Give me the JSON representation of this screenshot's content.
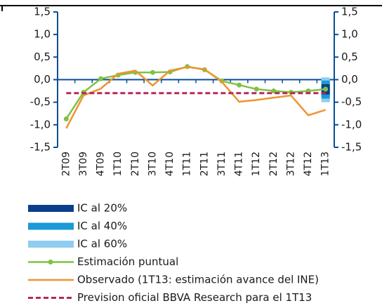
{
  "chart_data": {
    "type": "line",
    "categories": [
      "2T09",
      "3T09",
      "4T09",
      "1T10",
      "2T10",
      "3T10",
      "4T10",
      "1T11",
      "2T11",
      "3T11",
      "4T11",
      "1T12",
      "2T12",
      "3T12",
      "4T12",
      "1T13"
    ],
    "ylim": [
      -1.5,
      1.5
    ],
    "yticks": [
      {
        "value": 1.5,
        "label": "1,5"
      },
      {
        "value": 1.0,
        "label": "1,0"
      },
      {
        "value": 0.5,
        "label": "0,5"
      },
      {
        "value": 0,
        "label": "0,0"
      },
      {
        "value": -0.5,
        "label": "-0,5"
      },
      {
        "value": -1.0,
        "label": "-1,0"
      },
      {
        "value": -1.5,
        "label": "-1,5"
      }
    ],
    "y2lim": [
      -1.5,
      1.5
    ],
    "y2ticks": [
      {
        "value": 1.5,
        "label": "1,5"
      },
      {
        "value": 1.0,
        "label": "1,0"
      },
      {
        "value": 0.5,
        "label": "0,5"
      },
      {
        "value": 0,
        "label": "0,0"
      },
      {
        "value": -0.5,
        "label": "-0,5"
      },
      {
        "value": -1.0,
        "label": "-1,0"
      },
      {
        "value": -1.5,
        "label": "-1,5"
      }
    ],
    "ranges": [
      {
        "name": "IC al 20%",
        "color": "#0a3f8c",
        "low": [
          null,
          null,
          null,
          null,
          null,
          null,
          null,
          null,
          null,
          null,
          null,
          null,
          null,
          null,
          null,
          -0.33
        ],
        "high": [
          null,
          null,
          null,
          null,
          null,
          null,
          null,
          null,
          null,
          null,
          null,
          null,
          null,
          null,
          null,
          -0.1
        ]
      },
      {
        "name": "IC al 40%",
        "color": "#1a9ad6",
        "low": [
          null,
          null,
          null,
          null,
          null,
          null,
          null,
          null,
          null,
          null,
          null,
          null,
          null,
          null,
          null,
          -0.42
        ],
        "high": [
          null,
          null,
          null,
          null,
          null,
          null,
          null,
          null,
          null,
          null,
          null,
          null,
          null,
          null,
          null,
          -0.02
        ]
      },
      {
        "name": "IC al 60%",
        "color": "#8fcdf0",
        "low": [
          null,
          null,
          null,
          null,
          null,
          null,
          null,
          null,
          null,
          null,
          null,
          null,
          null,
          null,
          null,
          -0.5
        ],
        "high": [
          null,
          null,
          null,
          null,
          null,
          null,
          null,
          null,
          null,
          null,
          null,
          null,
          null,
          null,
          null,
          0.05
        ]
      }
    ],
    "series": [
      {
        "name": "Estimación puntual",
        "color": "#7fc242",
        "markers": true,
        "values": [
          -0.87,
          -0.28,
          0.02,
          0.1,
          0.16,
          0.16,
          0.17,
          0.29,
          0.22,
          -0.03,
          -0.12,
          -0.21,
          -0.25,
          -0.28,
          -0.25,
          -0.21
        ]
      },
      {
        "name": "Observado (1T13: estimación avance del INE)",
        "color": "#f0932f",
        "values": [
          -1.08,
          -0.35,
          -0.2,
          0.13,
          0.2,
          -0.13,
          0.2,
          0.28,
          0.23,
          -0.05,
          -0.49,
          -0.45,
          -0.4,
          -0.35,
          -0.79,
          -0.67
        ]
      },
      {
        "name": "Prevision oficial BBVA Research para el 1T13",
        "color": "#b5285d",
        "dashed": true,
        "values": [
          -0.3,
          -0.3,
          -0.3,
          -0.3,
          -0.3,
          -0.3,
          -0.3,
          -0.3,
          -0.3,
          -0.3,
          -0.3,
          -0.3,
          -0.3,
          -0.3,
          -0.3,
          -0.3
        ]
      }
    ]
  }
}
